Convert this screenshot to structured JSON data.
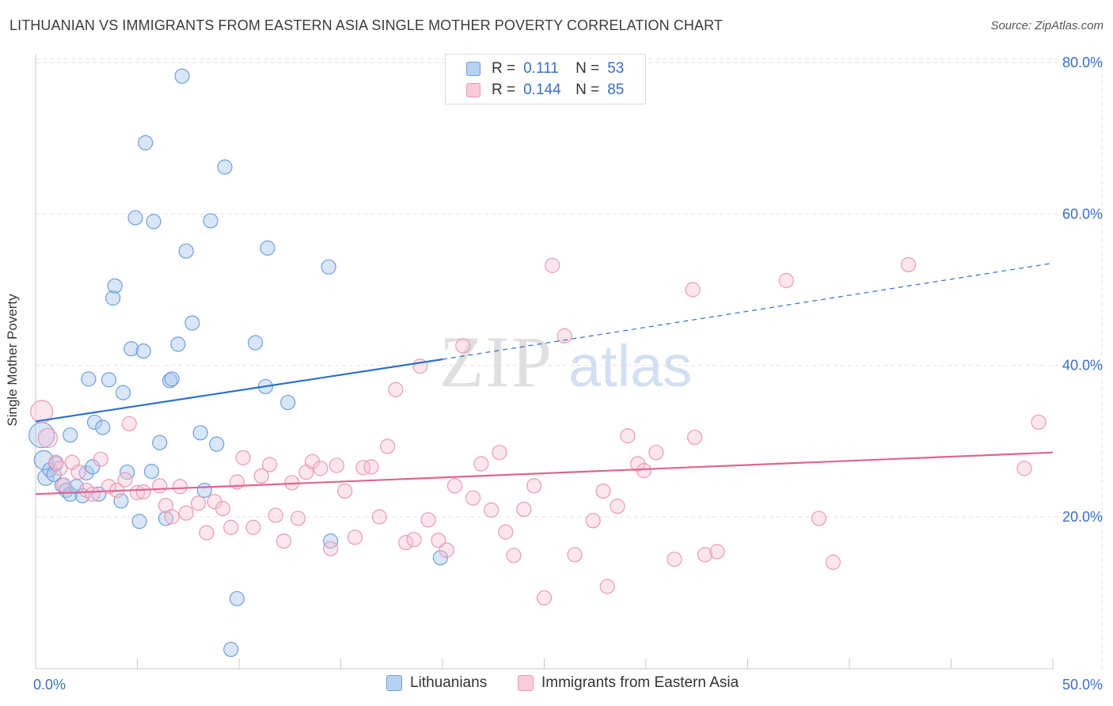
{
  "header": {
    "title": "LITHUANIAN VS IMMIGRANTS FROM EASTERN ASIA SINGLE MOTHER POVERTY CORRELATION CHART",
    "source": "Source: ZipAtlas.com"
  },
  "watermark": {
    "zip": "ZIP",
    "atlas": "atlas"
  },
  "legend_top": [
    {
      "r_label": "R =",
      "r_value": "0.111",
      "n_label": "N =",
      "n_value": "53"
    },
    {
      "r_label": "R =",
      "r_value": "0.144",
      "n_label": "N =",
      "n_value": "85"
    }
  ],
  "legend_bottom": [
    "Lithuanians",
    "Immigrants from Eastern Asia"
  ],
  "colors": {
    "blue_fill": "#a9c8ef",
    "blue_stroke": "#6f9fdc",
    "blue_line": "#2d6fd1",
    "pink_fill": "#f7c0d2",
    "pink_stroke": "#e99ab4",
    "pink_line": "#e0648f",
    "grid": "#e2e2e2",
    "tick_label": "#3a6fc4"
  },
  "chart_data": {
    "type": "scatter",
    "title": "LITHUANIAN VS IMMIGRANTS FROM EASTERN ASIA SINGLE MOTHER POVERTY CORRELATION CHART",
    "xlabel": "",
    "ylabel": "Single Mother Poverty",
    "xlim": [
      0,
      50
    ],
    "ylim": [
      0,
      82
    ],
    "x_tick_labels": [
      "0.0%",
      "50.0%"
    ],
    "y_ticks": [
      20,
      40,
      60,
      80
    ],
    "y_tick_labels": [
      "20.0%",
      "40.0%",
      "60.0%",
      "80.0%"
    ],
    "grid": true,
    "legend_position": "top-center",
    "series": [
      {
        "name": "Lithuanians",
        "R": 0.111,
        "N": 53,
        "trend": {
          "x": [
            0,
            20
          ],
          "y": [
            32.6,
            40.8
          ],
          "dashed_to": [
            50,
            53.5
          ]
        },
        "points": [
          {
            "x": 0.3,
            "y": 30.8,
            "s": 16
          },
          {
            "x": 0.4,
            "y": 27.5,
            "s": 12
          },
          {
            "x": 0.5,
            "y": 25.2,
            "s": 10
          },
          {
            "x": 0.7,
            "y": 26.2,
            "s": 9
          },
          {
            "x": 0.9,
            "y": 25.6,
            "s": 9
          },
          {
            "x": 1.0,
            "y": 27.0,
            "s": 9
          },
          {
            "x": 1.3,
            "y": 24.2,
            "s": 9
          },
          {
            "x": 1.5,
            "y": 23.5,
            "s": 9
          },
          {
            "x": 1.7,
            "y": 23.0,
            "s": 9
          },
          {
            "x": 1.7,
            "y": 30.8,
            "s": 9
          },
          {
            "x": 2.0,
            "y": 24.0,
            "s": 9
          },
          {
            "x": 2.3,
            "y": 22.8,
            "s": 9
          },
          {
            "x": 2.5,
            "y": 25.8,
            "s": 9
          },
          {
            "x": 2.6,
            "y": 38.2,
            "s": 9
          },
          {
            "x": 2.8,
            "y": 26.6,
            "s": 9
          },
          {
            "x": 2.9,
            "y": 32.5,
            "s": 9
          },
          {
            "x": 3.1,
            "y": 23.0,
            "s": 9
          },
          {
            "x": 3.3,
            "y": 31.8,
            "s": 9
          },
          {
            "x": 3.6,
            "y": 38.1,
            "s": 9
          },
          {
            "x": 3.8,
            "y": 48.9,
            "s": 9
          },
          {
            "x": 3.9,
            "y": 50.5,
            "s": 9
          },
          {
            "x": 4.2,
            "y": 22.1,
            "s": 9
          },
          {
            "x": 4.3,
            "y": 36.4,
            "s": 9
          },
          {
            "x": 4.5,
            "y": 25.9,
            "s": 9
          },
          {
            "x": 4.7,
            "y": 42.2,
            "s": 9
          },
          {
            "x": 4.9,
            "y": 59.5,
            "s": 9
          },
          {
            "x": 5.1,
            "y": 19.4,
            "s": 9
          },
          {
            "x": 5.3,
            "y": 41.9,
            "s": 9
          },
          {
            "x": 5.4,
            "y": 69.4,
            "s": 9
          },
          {
            "x": 5.7,
            "y": 26.0,
            "s": 9
          },
          {
            "x": 5.8,
            "y": 59.0,
            "s": 9
          },
          {
            "x": 6.1,
            "y": 29.8,
            "s": 9
          },
          {
            "x": 6.4,
            "y": 19.8,
            "s": 9
          },
          {
            "x": 6.6,
            "y": 38.0,
            "s": 9
          },
          {
            "x": 6.7,
            "y": 38.2,
            "s": 9
          },
          {
            "x": 7.0,
            "y": 42.8,
            "s": 9
          },
          {
            "x": 7.2,
            "y": 78.2,
            "s": 9
          },
          {
            "x": 7.4,
            "y": 55.1,
            "s": 9
          },
          {
            "x": 7.7,
            "y": 45.6,
            "s": 9
          },
          {
            "x": 8.1,
            "y": 31.1,
            "s": 9
          },
          {
            "x": 8.3,
            "y": 23.5,
            "s": 9
          },
          {
            "x": 8.6,
            "y": 59.1,
            "s": 9
          },
          {
            "x": 8.9,
            "y": 29.6,
            "s": 9
          },
          {
            "x": 9.3,
            "y": 66.2,
            "s": 9
          },
          {
            "x": 9.6,
            "y": 2.5,
            "s": 9
          },
          {
            "x": 9.9,
            "y": 9.2,
            "s": 9
          },
          {
            "x": 10.8,
            "y": 43.0,
            "s": 9
          },
          {
            "x": 11.3,
            "y": 37.2,
            "s": 9
          },
          {
            "x": 11.4,
            "y": 55.5,
            "s": 9
          },
          {
            "x": 12.4,
            "y": 35.1,
            "s": 9
          },
          {
            "x": 14.4,
            "y": 53.0,
            "s": 9
          },
          {
            "x": 14.5,
            "y": 16.8,
            "s": 9
          },
          {
            "x": 19.9,
            "y": 14.6,
            "s": 9
          }
        ]
      },
      {
        "name": "Immigrants from Eastern Asia",
        "R": 0.144,
        "N": 85,
        "trend": {
          "x": [
            0,
            50
          ],
          "y": [
            23.0,
            28.5
          ]
        },
        "points": [
          {
            "x": 0.3,
            "y": 33.9,
            "s": 14
          },
          {
            "x": 0.6,
            "y": 30.4,
            "s": 12
          },
          {
            "x": 1.0,
            "y": 27.2,
            "s": 9
          },
          {
            "x": 1.2,
            "y": 26.4,
            "s": 9
          },
          {
            "x": 1.4,
            "y": 24.2,
            "s": 9
          },
          {
            "x": 1.8,
            "y": 27.2,
            "s": 9
          },
          {
            "x": 2.1,
            "y": 25.9,
            "s": 9
          },
          {
            "x": 2.5,
            "y": 23.5,
            "s": 9
          },
          {
            "x": 2.8,
            "y": 23.0,
            "s": 9
          },
          {
            "x": 3.2,
            "y": 27.6,
            "s": 9
          },
          {
            "x": 3.6,
            "y": 24.0,
            "s": 9
          },
          {
            "x": 4.0,
            "y": 23.5,
            "s": 9
          },
          {
            "x": 4.4,
            "y": 24.9,
            "s": 9
          },
          {
            "x": 4.6,
            "y": 32.3,
            "s": 9
          },
          {
            "x": 5.0,
            "y": 23.2,
            "s": 9
          },
          {
            "x": 5.3,
            "y": 23.3,
            "s": 9
          },
          {
            "x": 6.1,
            "y": 24.1,
            "s": 9
          },
          {
            "x": 6.4,
            "y": 21.5,
            "s": 9
          },
          {
            "x": 6.7,
            "y": 20.0,
            "s": 9
          },
          {
            "x": 7.1,
            "y": 24.0,
            "s": 9
          },
          {
            "x": 7.4,
            "y": 20.5,
            "s": 9
          },
          {
            "x": 8.0,
            "y": 21.8,
            "s": 9
          },
          {
            "x": 8.4,
            "y": 17.9,
            "s": 9
          },
          {
            "x": 8.8,
            "y": 22.0,
            "s": 9
          },
          {
            "x": 9.2,
            "y": 21.1,
            "s": 9
          },
          {
            "x": 9.6,
            "y": 18.6,
            "s": 9
          },
          {
            "x": 9.9,
            "y": 24.6,
            "s": 9
          },
          {
            "x": 10.2,
            "y": 27.8,
            "s": 9
          },
          {
            "x": 10.7,
            "y": 18.6,
            "s": 9
          },
          {
            "x": 11.1,
            "y": 25.4,
            "s": 9
          },
          {
            "x": 11.5,
            "y": 26.9,
            "s": 9
          },
          {
            "x": 11.8,
            "y": 20.2,
            "s": 9
          },
          {
            "x": 12.2,
            "y": 16.8,
            "s": 9
          },
          {
            "x": 12.6,
            "y": 24.5,
            "s": 9
          },
          {
            "x": 12.9,
            "y": 19.8,
            "s": 9
          },
          {
            "x": 13.3,
            "y": 25.9,
            "s": 9
          },
          {
            "x": 13.6,
            "y": 27.3,
            "s": 9
          },
          {
            "x": 14.0,
            "y": 26.4,
            "s": 9
          },
          {
            "x": 14.5,
            "y": 15.8,
            "s": 9
          },
          {
            "x": 14.8,
            "y": 26.8,
            "s": 9
          },
          {
            "x": 15.2,
            "y": 23.4,
            "s": 9
          },
          {
            "x": 15.7,
            "y": 17.3,
            "s": 9
          },
          {
            "x": 16.1,
            "y": 26.5,
            "s": 9
          },
          {
            "x": 16.5,
            "y": 26.6,
            "s": 9
          },
          {
            "x": 16.9,
            "y": 20.0,
            "s": 9
          },
          {
            "x": 17.3,
            "y": 29.3,
            "s": 9
          },
          {
            "x": 17.7,
            "y": 36.8,
            "s": 9
          },
          {
            "x": 18.2,
            "y": 16.6,
            "s": 9
          },
          {
            "x": 18.6,
            "y": 17.0,
            "s": 9
          },
          {
            "x": 18.9,
            "y": 39.9,
            "s": 9
          },
          {
            "x": 19.3,
            "y": 19.6,
            "s": 9
          },
          {
            "x": 19.8,
            "y": 16.9,
            "s": 9
          },
          {
            "x": 20.2,
            "y": 15.6,
            "s": 9
          },
          {
            "x": 20.6,
            "y": 24.1,
            "s": 9
          },
          {
            "x": 21.0,
            "y": 42.6,
            "s": 9
          },
          {
            "x": 21.5,
            "y": 22.5,
            "s": 9
          },
          {
            "x": 21.9,
            "y": 27.0,
            "s": 9
          },
          {
            "x": 22.4,
            "y": 20.9,
            "s": 9
          },
          {
            "x": 22.8,
            "y": 28.5,
            "s": 9
          },
          {
            "x": 23.1,
            "y": 18.0,
            "s": 9
          },
          {
            "x": 23.5,
            "y": 14.9,
            "s": 9
          },
          {
            "x": 24.0,
            "y": 21.0,
            "s": 9
          },
          {
            "x": 24.5,
            "y": 24.1,
            "s": 9
          },
          {
            "x": 25.0,
            "y": 9.3,
            "s": 9
          },
          {
            "x": 25.4,
            "y": 53.2,
            "s": 9
          },
          {
            "x": 26.0,
            "y": 43.9,
            "s": 9
          },
          {
            "x": 26.5,
            "y": 15.0,
            "s": 9
          },
          {
            "x": 27.4,
            "y": 19.5,
            "s": 9
          },
          {
            "x": 27.9,
            "y": 23.4,
            "s": 9
          },
          {
            "x": 28.1,
            "y": 10.8,
            "s": 9
          },
          {
            "x": 28.6,
            "y": 21.4,
            "s": 9
          },
          {
            "x": 29.1,
            "y": 30.7,
            "s": 9
          },
          {
            "x": 29.6,
            "y": 27.0,
            "s": 9
          },
          {
            "x": 29.9,
            "y": 26.1,
            "s": 9
          },
          {
            "x": 30.5,
            "y": 28.5,
            "s": 9
          },
          {
            "x": 31.4,
            "y": 14.4,
            "s": 9
          },
          {
            "x": 32.3,
            "y": 50.0,
            "s": 9
          },
          {
            "x": 32.4,
            "y": 30.5,
            "s": 9
          },
          {
            "x": 32.9,
            "y": 15.0,
            "s": 9
          },
          {
            "x": 33.5,
            "y": 15.4,
            "s": 9
          },
          {
            "x": 36.9,
            "y": 51.2,
            "s": 9
          },
          {
            "x": 38.5,
            "y": 19.8,
            "s": 9
          },
          {
            "x": 39.2,
            "y": 14.0,
            "s": 9
          },
          {
            "x": 42.9,
            "y": 53.3,
            "s": 9
          },
          {
            "x": 48.6,
            "y": 26.4,
            "s": 9
          },
          {
            "x": 49.3,
            "y": 32.5,
            "s": 9
          }
        ]
      }
    ]
  }
}
